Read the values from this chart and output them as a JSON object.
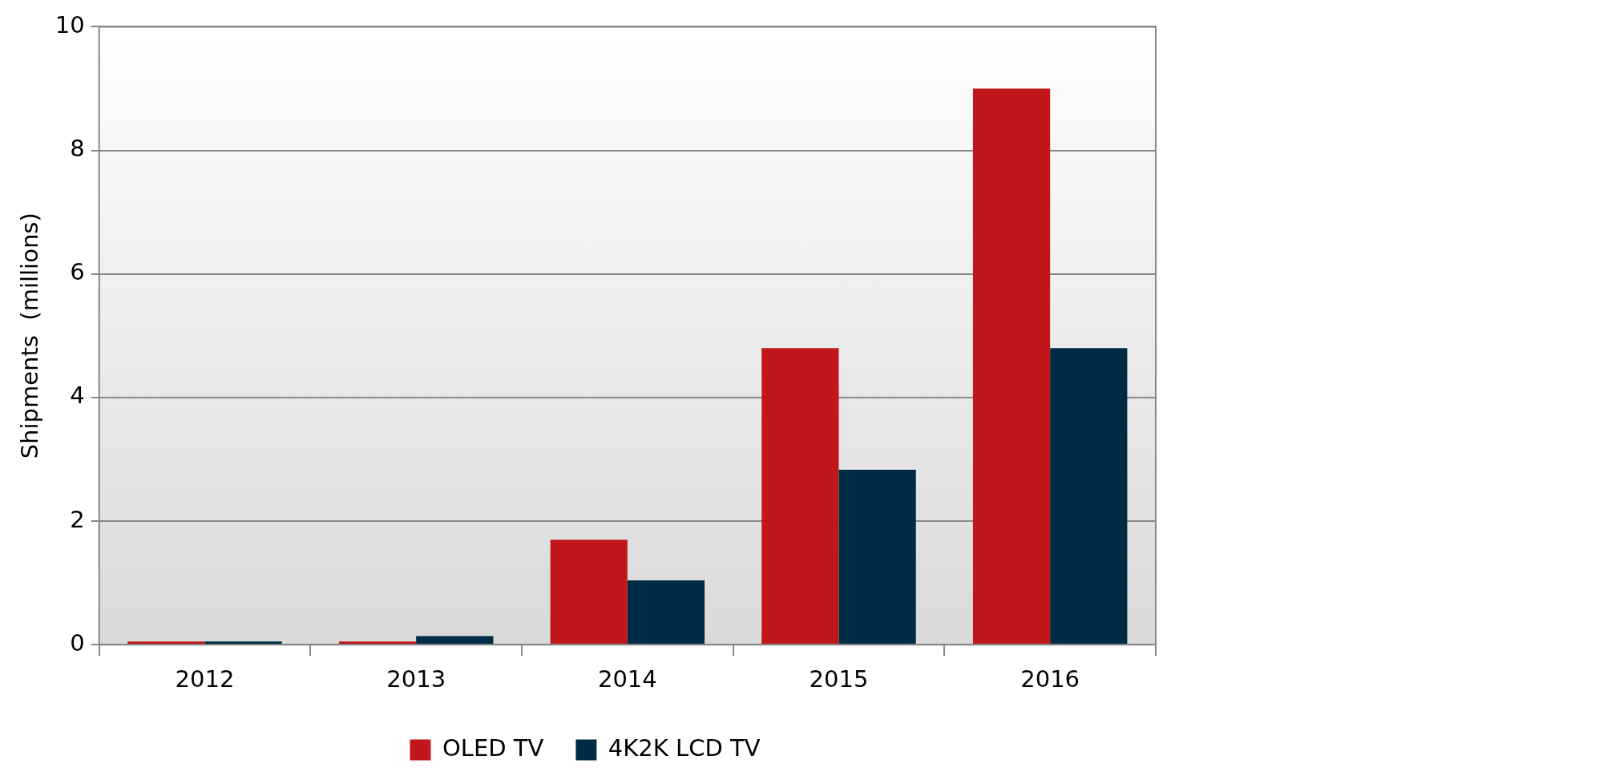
{
  "chart_data": {
    "type": "bar",
    "ylabel": "Shipments  (millions)",
    "categories": [
      "2012",
      "2013",
      "2014",
      "2015",
      "2016"
    ],
    "series": [
      {
        "name": "OLED TV",
        "color": "#c1171a",
        "values": [
          0.05,
          0.05,
          1.7,
          4.8,
          9.0
        ]
      },
      {
        "name": "4K2K LCD TV",
        "color": "#002b45",
        "values": [
          0.05,
          0.14,
          1.04,
          2.83,
          4.8
        ]
      }
    ],
    "ylim": [
      0,
      10
    ],
    "yticks": [
      0,
      2,
      4,
      6,
      8,
      10
    ],
    "grid": "y",
    "legend": "bottom"
  }
}
